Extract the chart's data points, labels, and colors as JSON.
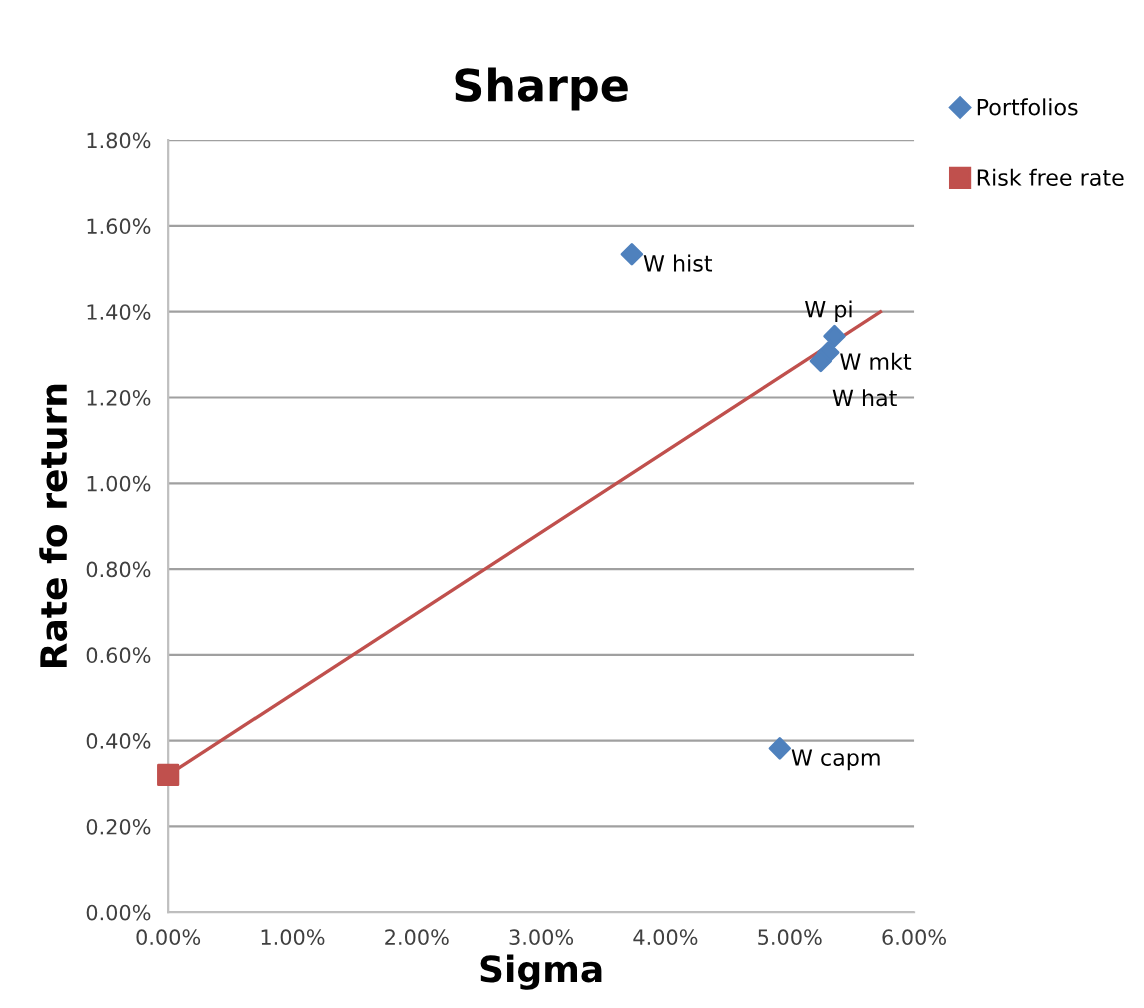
{
  "chart_data": {
    "type": "scatter",
    "title": "Sharpe",
    "xlabel": "Sigma",
    "ylabel": "Rate fo return",
    "series": [
      {
        "name": "Portfolios",
        "color": "#4f81bd",
        "marker": "diamond",
        "x": [
          3.73,
          5.36,
          5.31,
          5.25,
          4.92
        ],
        "values": [
          1.534,
          1.343,
          1.305,
          1.285,
          0.382
        ]
      },
      {
        "name": "Risk free rate",
        "color": "#c0504d",
        "marker": "square",
        "x": [
          0
        ],
        "values": [
          0.32
        ]
      },
      {
        "type": "line",
        "color": "#c0504d",
        "marker": "none",
        "x": [
          0,
          5.73
        ],
        "values": [
          0.32,
          1.4
        ]
      }
    ],
    "annotations": [
      {
        "text": "W hist",
        "x": 3.73,
        "y": 1.534
      },
      {
        "text": "W pi",
        "x": 5.36,
        "y": 1.343
      },
      {
        "text": "W mkt",
        "x": 5.31,
        "y": 1.305
      },
      {
        "text": "W hat",
        "x": 5.25,
        "y": 1.285
      },
      {
        "text": "W capm",
        "x": 4.92,
        "y": 0.382
      }
    ],
    "xlim": [
      0,
      6
    ],
    "xticks": [
      {
        "value": 0,
        "label": "0.00%"
      },
      {
        "value": 1,
        "label": "1.00%"
      },
      {
        "value": 2,
        "label": "2.00%"
      },
      {
        "value": 3,
        "label": "3.00%"
      },
      {
        "value": 4,
        "label": "4.00%"
      },
      {
        "value": 5,
        "label": "5.00%"
      },
      {
        "value": 6,
        "label": "6.00%"
      }
    ],
    "ylim": [
      0,
      1.8
    ],
    "yticks": [
      {
        "value": 0,
        "label": "0.00%"
      },
      {
        "value": 0.2,
        "label": "0.20%"
      },
      {
        "value": 0.4,
        "label": "0.40%"
      },
      {
        "value": 0.6,
        "label": "0.60%"
      },
      {
        "value": 0.8,
        "label": "0.80%"
      },
      {
        "value": 1.0,
        "label": "1.00%"
      },
      {
        "value": 1.2,
        "label": "1.20%"
      },
      {
        "value": 1.4,
        "label": "1.40%"
      },
      {
        "value": 1.6,
        "label": "1.60%"
      },
      {
        "value": 1.8,
        "label": "1.80%"
      }
    ],
    "grid": "y",
    "legend": "top right"
  }
}
